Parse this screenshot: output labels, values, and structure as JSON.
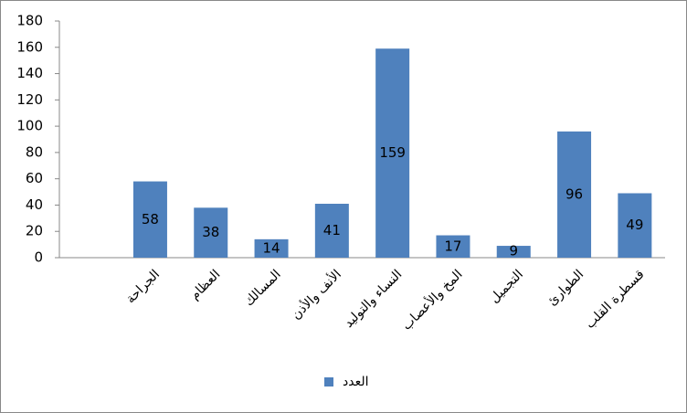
{
  "chart_data": {
    "type": "bar",
    "categories": [
      null,
      "الجراحة",
      "العظام",
      "المسالك",
      "الأنف والأذن",
      "النساء والتوليد",
      "المخ والأعصاب",
      "التجميل",
      "الطوارئ",
      "قسطرة القلب"
    ],
    "series": [
      {
        "name": "العدد",
        "color": "#4f81bd",
        "values": [
          null,
          58,
          38,
          14,
          41,
          159,
          17,
          9,
          96,
          49
        ]
      }
    ],
    "ylim": [
      0,
      180
    ],
    "yticks": [
      0,
      20,
      40,
      60,
      80,
      100,
      120,
      140,
      160,
      180
    ],
    "legend": "bottom"
  }
}
